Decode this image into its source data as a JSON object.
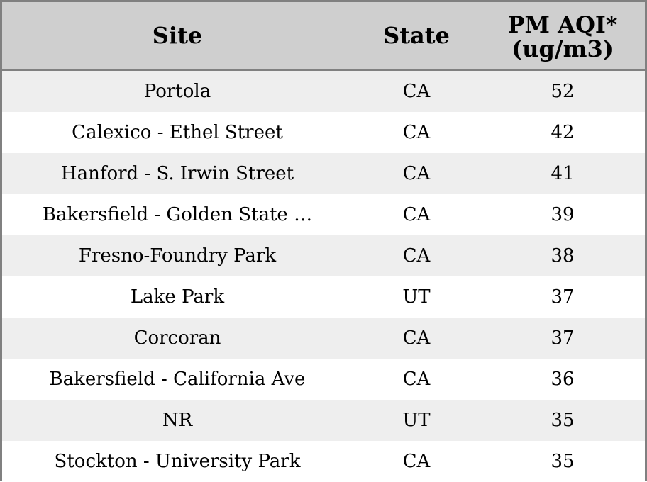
{
  "chart_data": {
    "type": "table",
    "columns": [
      "Site",
      "State",
      "PM AQI*\n(ug/m3)"
    ],
    "rows": [
      {
        "site": "Portola",
        "state": "CA",
        "aqi": 52
      },
      {
        "site": "Calexico - Ethel Street",
        "state": "CA",
        "aqi": 42
      },
      {
        "site": "Hanford - S. Irwin Street",
        "state": "CA",
        "aqi": 41
      },
      {
        "site": "Bakersfield - Golden State …",
        "state": "CA",
        "aqi": 39
      },
      {
        "site": "Fresno-Foundry Park",
        "state": "CA",
        "aqi": 38
      },
      {
        "site": "Lake Park",
        "state": "UT",
        "aqi": 37
      },
      {
        "site": "Corcoran",
        "state": "CA",
        "aqi": 37
      },
      {
        "site": "Bakersfield - California Ave",
        "state": "CA",
        "aqi": 36
      },
      {
        "site": "NR",
        "state": "UT",
        "aqi": 35
      },
      {
        "site": "Stockton - University Park",
        "state": "CA",
        "aqi": 35
      }
    ]
  },
  "colors": {
    "header_bg": "#cfcfcf",
    "row_alt_bg": "#eeeeee",
    "row_bg": "#ffffff",
    "border": "#808080"
  }
}
